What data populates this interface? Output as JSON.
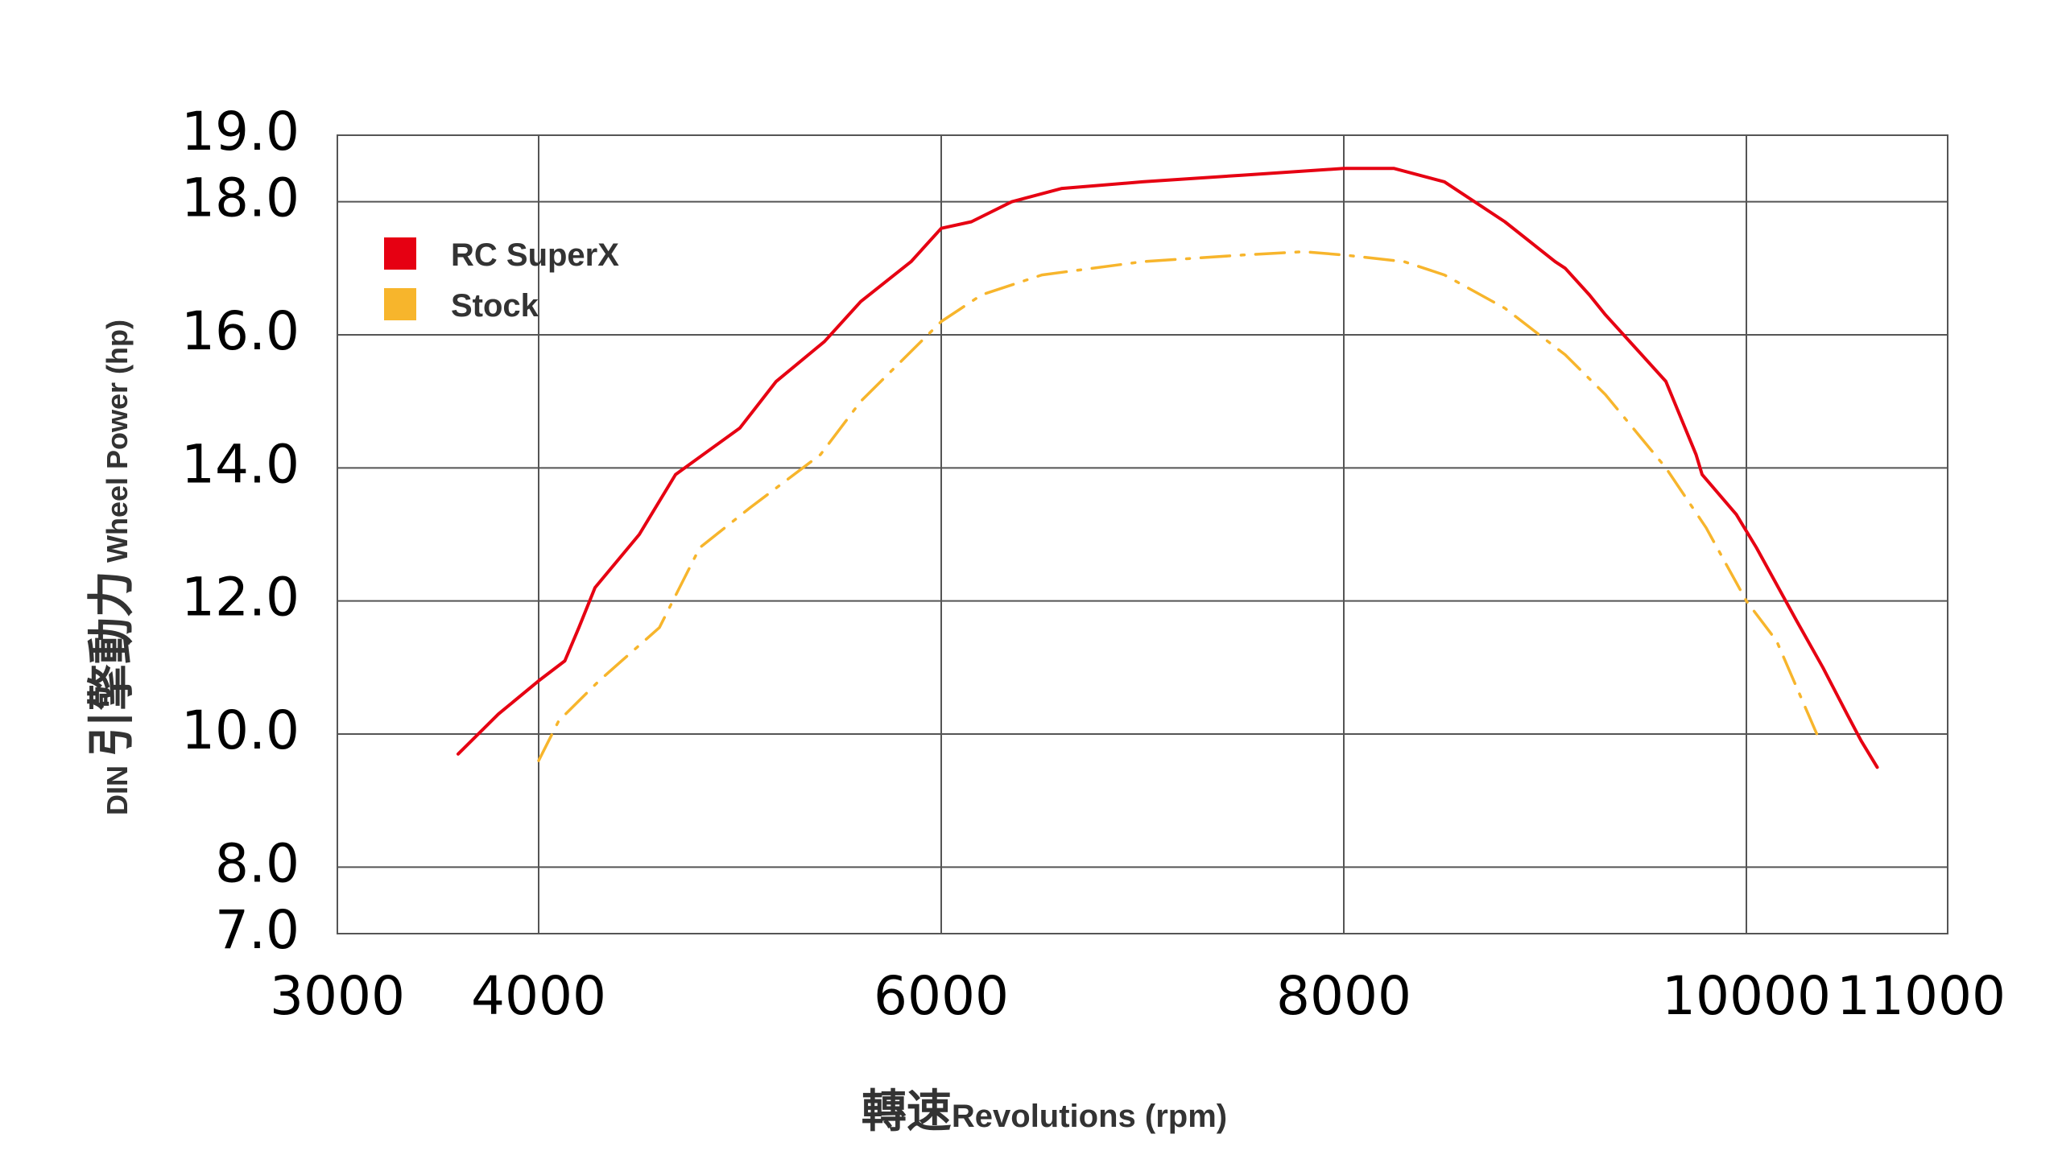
{
  "chart_data": {
    "type": "line",
    "xlabel_cn": "轉速",
    "xlabel_en": "Revolutions (rpm)",
    "ylabel_prefix": "DIN",
    "ylabel_cn": "引擎動力",
    "ylabel_en": "Wheel Power (hp)",
    "xlim": [
      3000,
      11000
    ],
    "ylim": [
      7.0,
      19.0
    ],
    "x_ticks": [
      3000,
      4000,
      6000,
      8000,
      10000,
      11000
    ],
    "x_tick_labels": [
      "3000",
      "4000",
      "6000",
      "8000",
      "10000",
      "11000"
    ],
    "y_ticks": [
      7.0,
      8.0,
      10.0,
      12.0,
      14.0,
      16.0,
      18.0,
      19.0
    ],
    "y_tick_labels": [
      "7.0",
      "8.0",
      "10.0",
      "12.0",
      "14.0",
      "16.0",
      "18.0",
      "19.0"
    ],
    "grid": true,
    "legend_position": "top-left",
    "series": [
      {
        "name": "RC SuperX",
        "color": "#e60012",
        "style": "solid",
        "x": [
          3600,
          3800,
          4000,
          4130,
          4200,
          4280,
          4500,
          4680,
          5000,
          5180,
          5420,
          5600,
          5850,
          6000,
          6150,
          6350,
          6600,
          7000,
          7500,
          8000,
          8250,
          8500,
          8800,
          9050,
          9100,
          9220,
          9300,
          9450,
          9600,
          9750,
          9780,
          9950,
          10050,
          10250,
          10380,
          10500,
          10570,
          10650
        ],
        "y": [
          9.7,
          10.3,
          10.8,
          11.1,
          11.6,
          12.2,
          13.0,
          13.9,
          14.6,
          15.3,
          15.9,
          16.5,
          17.1,
          17.6,
          17.7,
          18.0,
          18.2,
          18.3,
          18.4,
          18.5,
          18.5,
          18.3,
          17.7,
          17.1,
          17.0,
          16.6,
          16.3,
          15.8,
          15.3,
          14.2,
          13.9,
          13.3,
          12.8,
          11.7,
          11.0,
          10.3,
          9.9,
          9.5
        ]
      },
      {
        "name": "Stock",
        "color": "#f7b52c",
        "style": "dash-dot",
        "x": [
          4000,
          4100,
          4300,
          4600,
          4800,
          5050,
          5400,
          5600,
          5800,
          6000,
          6200,
          6500,
          7000,
          7500,
          7800,
          8000,
          8300,
          8500,
          8800,
          9100,
          9300,
          9600,
          9800,
          10000,
          10150,
          10350
        ],
        "y": [
          9.6,
          10.2,
          10.8,
          11.6,
          12.8,
          13.4,
          14.2,
          15.0,
          15.6,
          16.2,
          16.6,
          16.9,
          17.1,
          17.2,
          17.25,
          17.2,
          17.1,
          16.9,
          16.4,
          15.7,
          15.1,
          14.0,
          13.1,
          12.0,
          11.4,
          10.0
        ]
      }
    ]
  }
}
